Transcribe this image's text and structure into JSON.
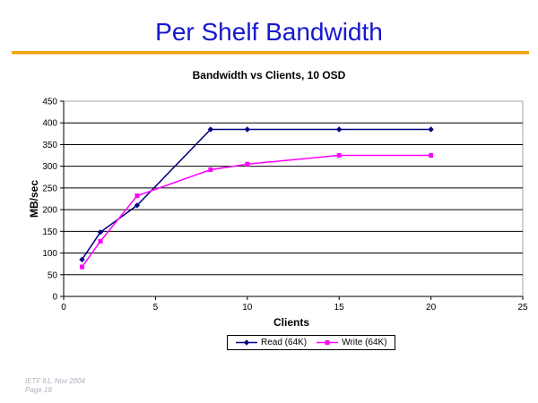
{
  "slide": {
    "title": "Per Shelf Bandwidth",
    "title_color": "#1717CF",
    "accent_color": "#EFA30D"
  },
  "footer": {
    "line1": "IETF 61, Nov 2004",
    "line2": "Page 18"
  },
  "chart_data": {
    "type": "line",
    "title": "Bandwidth vs Clients, 10 OSD",
    "xlabel": "Clients",
    "ylabel": "MB/sec",
    "xlim": [
      0,
      25
    ],
    "ylim": [
      0,
      450
    ],
    "xticks": [
      0,
      5,
      10,
      15,
      20,
      25
    ],
    "yticks": [
      0,
      50,
      100,
      150,
      200,
      250,
      300,
      350,
      400,
      450
    ],
    "grid": "horizontal-black, plot border gray top/right",
    "legend_position": "bottom-center",
    "x": [
      1,
      2,
      4,
      8,
      10,
      15,
      20
    ],
    "series": [
      {
        "name": "Read (64K)",
        "color": "#000080",
        "marker": "diamond",
        "values": [
          85,
          148,
          210,
          385,
          385,
          385,
          385
        ]
      },
      {
        "name": "Write (64K)",
        "color": "#FF00FF",
        "marker": "square",
        "values": [
          68,
          127,
          232,
          292,
          305,
          325,
          325
        ]
      }
    ],
    "colors": {
      "gridline": "#000000",
      "plot_border": "#A6A6A6",
      "axis": "#000000"
    }
  }
}
